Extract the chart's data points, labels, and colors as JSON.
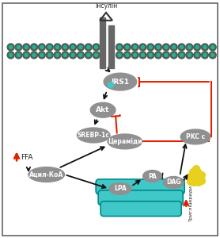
{
  "bg_color": "#ffffff",
  "border_color": "#666666",
  "node_color": "#909090",
  "red_color": "#dd2200",
  "black_color": "#111111",
  "teal_color": "#40C8C8",
  "teal_dark": "#008888",
  "yellow_color": "#E8D020",
  "membrane_outer": "#506050",
  "membrane_inner": "#20B0A0",
  "insulin_text": "Інсулін",
  "irs1_text": "IRS1",
  "akt_text": "Akt",
  "srebp_text": "SREBP-1c",
  "ceramide_text": "Цераміди",
  "acylcoa_text": "Ацил-КоА",
  "lpa_text": "LPA",
  "pa_text": "PA",
  "dag_text": "DAG",
  "pkcc_text": "PKC c",
  "ffa_text": "FFA",
  "trig_text": "Тригліцериди"
}
